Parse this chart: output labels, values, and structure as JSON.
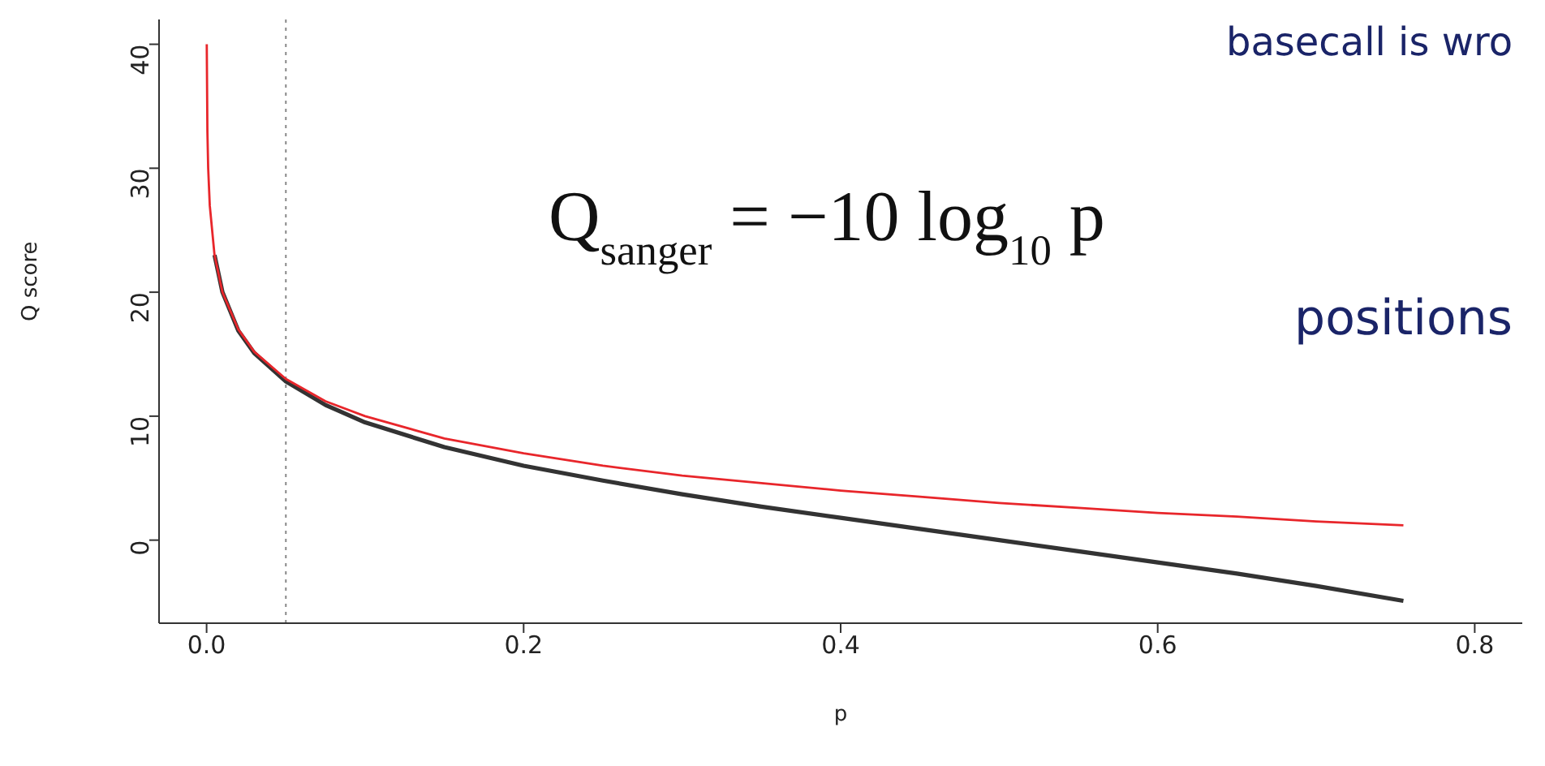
{
  "chart_data": {
    "type": "line",
    "xlabel": "p",
    "ylabel": "Q score",
    "xlim": [
      -0.03,
      0.83
    ],
    "ylim": [
      -6.7,
      42
    ],
    "xticks": [
      {
        "value": 0,
        "label": "0.0"
      },
      0.2,
      0.4,
      0.6,
      0.8
    ],
    "yticks": [
      0,
      10,
      20,
      30,
      40
    ],
    "grid": false,
    "marker": "none",
    "line_style": "solid",
    "series": [
      {
        "color": "#333333",
        "x": [
          0.005,
          0.01,
          0.02,
          0.03,
          0.05,
          0.075,
          0.1,
          0.15,
          0.2,
          0.25,
          0.3,
          0.35,
          0.4,
          0.45,
          0.5,
          0.55,
          0.6,
          0.65,
          0.7,
          0.755
        ],
        "values": [
          23,
          20,
          16.9,
          15.1,
          12.8,
          10.9,
          9.5,
          7.5,
          6,
          4.8,
          3.7,
          2.7,
          1.8,
          0.9,
          0,
          -0.9,
          -1.8,
          -2.7,
          -3.7,
          -4.9
        ]
      },
      {
        "color": "#e8262b",
        "x": [
          0.0001,
          0.0005,
          0.001,
          0.002,
          0.005,
          0.01,
          0.02,
          0.03,
          0.05,
          0.075,
          0.1,
          0.15,
          0.2,
          0.25,
          0.3,
          0.35,
          0.4,
          0.45,
          0.5,
          0.55,
          0.6,
          0.65,
          0.7,
          0.755
        ],
        "values": [
          40,
          33,
          30,
          27,
          23,
          20,
          17,
          15.2,
          13,
          11.2,
          10,
          8.2,
          7,
          6,
          5.2,
          4.6,
          4,
          3.5,
          3,
          2.6,
          2.2,
          1.9,
          1.5,
          1.2
        ]
      }
    ],
    "ref_lines": [
      {
        "axis": "x",
        "value": 0.05,
        "color": "#888888",
        "line_style": "dotted"
      }
    ],
    "annotations": [
      "Q$_{sanger}$ = −10 log$_{10}$ p",
      "positions",
      "basecall is wro"
    ]
  }
}
